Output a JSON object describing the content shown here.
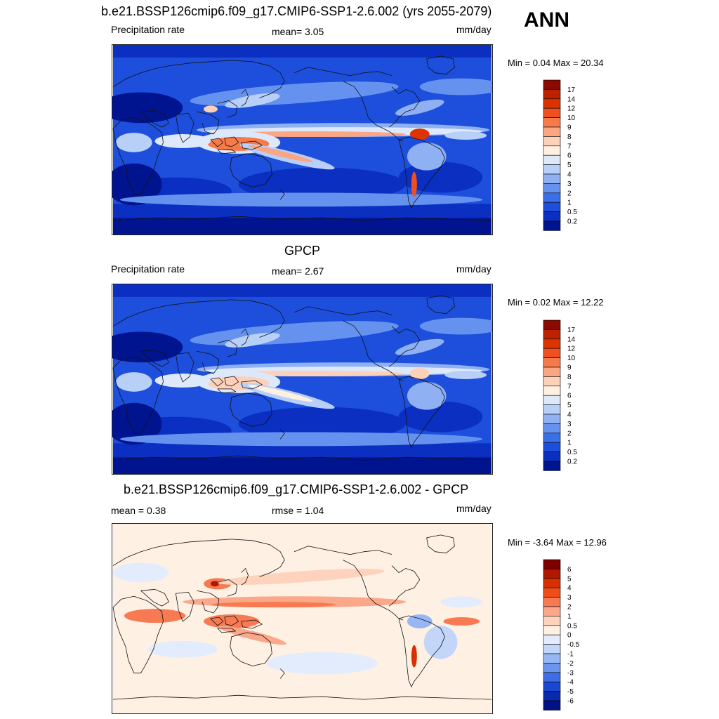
{
  "season_label": "ANN",
  "panels": [
    {
      "title": "b.e21.BSSP126cmip6.f09_g17.CMIP6-SSP1-2.6.002 (yrs 2055-2079)",
      "left_label": "Precipitation rate",
      "center_label": "mean=   3.05",
      "units": "mm/day",
      "minmax": "Min =   0.04 Max =  20.34",
      "palette": "precip",
      "colorbar_labels": [
        "17",
        "14",
        "12",
        "10",
        "9",
        "8",
        "7",
        "6",
        "5",
        "4",
        "3",
        "2",
        "1",
        "0.5",
        "0.2"
      ]
    },
    {
      "title": "GPCP",
      "left_label": "Precipitation rate",
      "center_label": "mean=   2.67",
      "units": "mm/day",
      "minmax": "Min =   0.02 Max =  12.22",
      "palette": "precip",
      "colorbar_labels": [
        "17",
        "14",
        "12",
        "10",
        "9",
        "8",
        "7",
        "6",
        "5",
        "4",
        "3",
        "2",
        "1",
        "0.5",
        "0.2"
      ]
    },
    {
      "title": "b.e21.BSSP126cmip6.f09_g17.CMIP6-SSP1-2.6.002 - GPCP",
      "left_label": "mean =   0.38",
      "center_label": "rmse =   1.04",
      "units": "mm/day",
      "minmax": "Min =  -3.64 Max =  12.96",
      "palette": "diff",
      "colorbar_labels": [
        "6",
        "5",
        "4",
        "3",
        "2",
        "1",
        "0.5",
        "0",
        "-0.5",
        "-1",
        "-2",
        "-3",
        "-4",
        "-5",
        "-6"
      ]
    }
  ],
  "chart_data": [
    {
      "type": "heatmap",
      "title": "b.e21.BSSP126cmip6.f09_g17.CMIP6-SSP1-2.6.002 (yrs 2055-2079)",
      "variable": "Precipitation rate",
      "units": "mm/day",
      "mean": 3.05,
      "min": 0.04,
      "max": 20.34,
      "contour_levels": [
        0.2,
        0.5,
        1,
        2,
        3,
        4,
        5,
        6,
        7,
        8,
        9,
        10,
        12,
        14,
        17
      ]
    },
    {
      "type": "heatmap",
      "title": "GPCP",
      "variable": "Precipitation rate",
      "units": "mm/day",
      "mean": 2.67,
      "min": 0.02,
      "max": 12.22,
      "contour_levels": [
        0.2,
        0.5,
        1,
        2,
        3,
        4,
        5,
        6,
        7,
        8,
        9,
        10,
        12,
        14,
        17
      ]
    },
    {
      "type": "heatmap",
      "title": "b.e21.BSSP126cmip6.f09_g17.CMIP6-SSP1-2.6.002 - GPCP",
      "units": "mm/day",
      "mean": 0.38,
      "rmse": 1.04,
      "min": -3.64,
      "max": 12.96,
      "contour_levels": [
        -6,
        -5,
        -4,
        -3,
        -2,
        -1,
        -0.5,
        0,
        0.5,
        1,
        2,
        3,
        4,
        5,
        6
      ]
    }
  ],
  "palettes": {
    "precip": [
      "#8b0a00",
      "#bb2200",
      "#dd3300",
      "#f05020",
      "#f77a4a",
      "#fba583",
      "#fdd0b8",
      "#fff0e2",
      "#dde8fb",
      "#b8cff8",
      "#8fb0f3",
      "#6692ef",
      "#3b6fe8",
      "#1d4fdc",
      "#0b2fc0",
      "#001490"
    ],
    "diff": [
      "#7d0000",
      "#b01800",
      "#d83000",
      "#f04d1a",
      "#f77a52",
      "#fba88a",
      "#fdd3bd",
      "#fff0e4",
      "#e2ecfc",
      "#c3d6fa",
      "#97b7f4",
      "#6b95ee",
      "#3e6ee5",
      "#1b48d3",
      "#0a2aae",
      "#001285"
    ]
  }
}
